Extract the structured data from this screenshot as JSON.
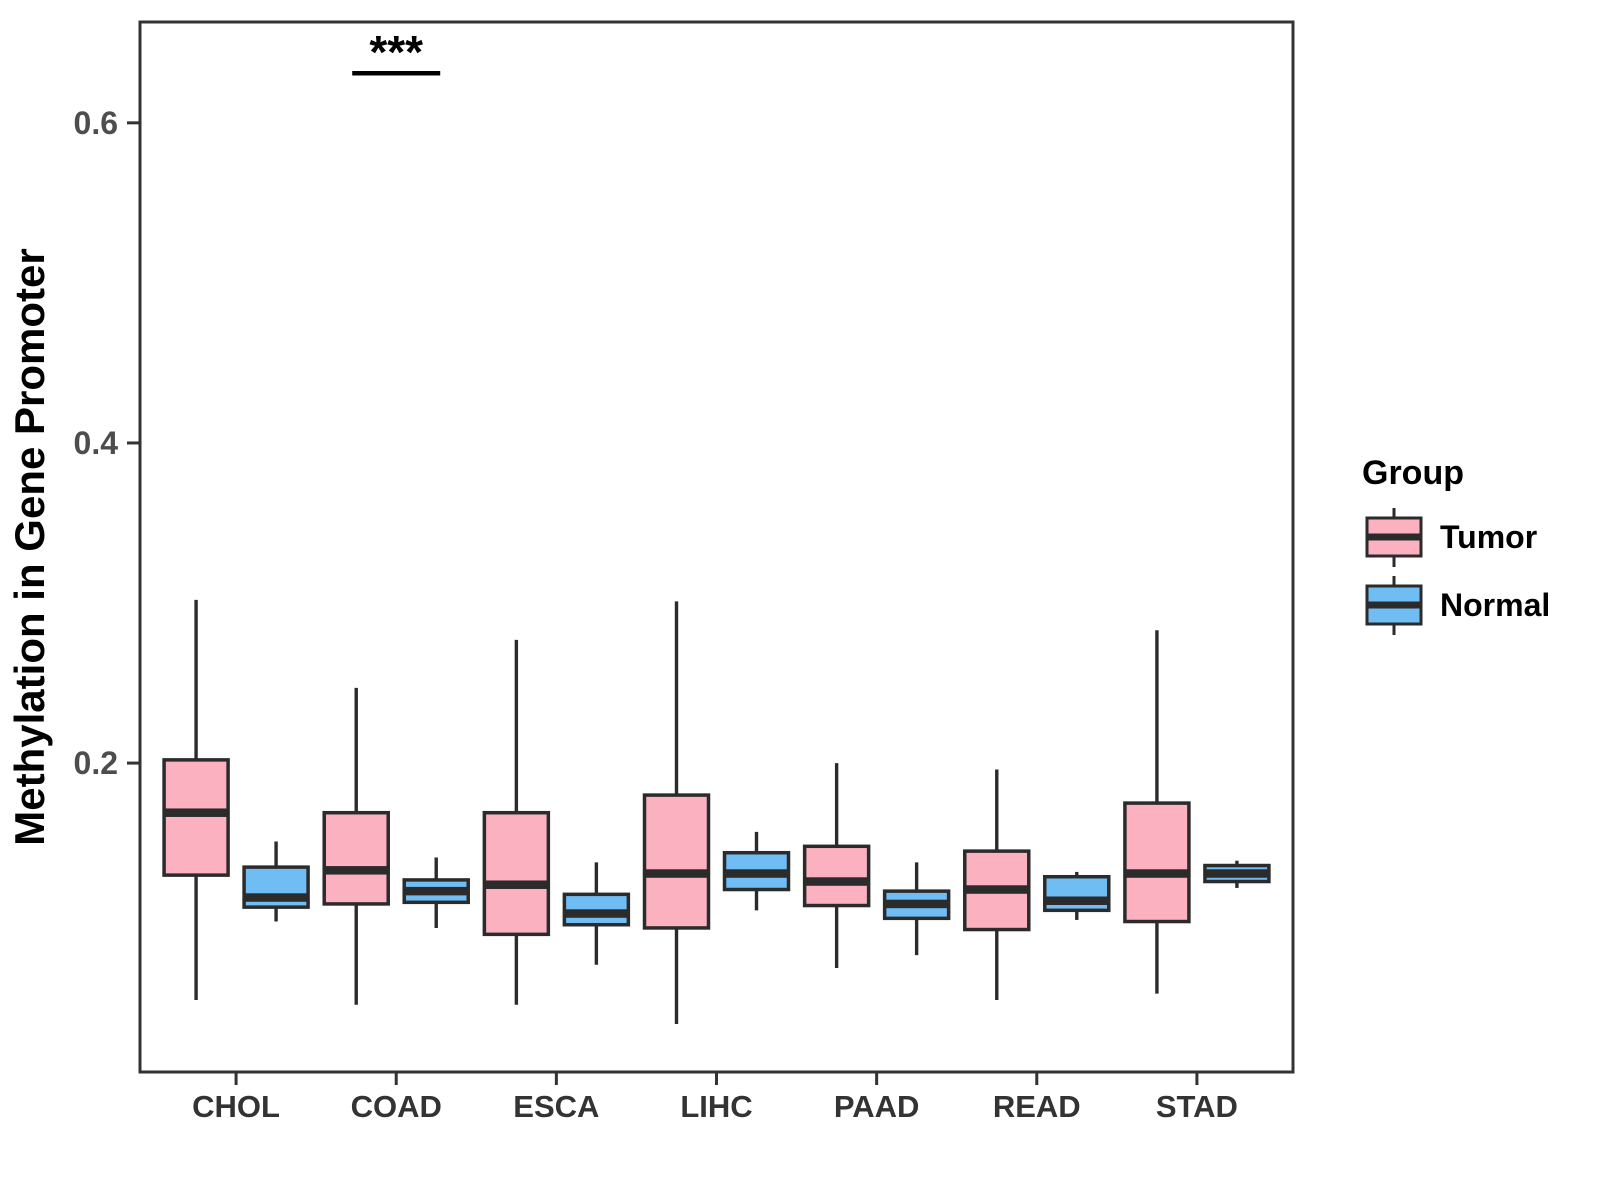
{
  "figure": {
    "background": "#ffffff"
  },
  "chart_data": {
    "type": "boxplot",
    "title": "",
    "ylabel": "Methylation in Gene Promoter",
    "xlabel": "",
    "categories": [
      "CHOL",
      "COAD",
      "ESCA",
      "LIHC",
      "PAAD",
      "READ",
      "STAD"
    ],
    "legend_title": "Group",
    "groups": [
      "Tumor",
      "Normal"
    ],
    "legend_position": "right",
    "grid": "off",
    "ylim": [
      0.007,
      0.663
    ],
    "yticks": [
      0.2,
      0.4,
      0.6
    ],
    "ytick_labels": [
      "0.2",
      "0.4",
      "0.6"
    ],
    "colors": {
      "tumor": "#FBB1C0",
      "normal": "#70BDF4",
      "box_stroke": "#2B2B2B",
      "axis": "#333333",
      "ytick_text": "#4D4D4D",
      "xtick_text": "#333333",
      "significance": "#000000"
    },
    "significance": {
      "category": "COAD",
      "label": "***",
      "y_value": 0.631
    },
    "series": [
      {
        "name": "Tumor",
        "color": "#FBB1C0",
        "boxes": [
          {
            "category": "CHOL",
            "whisker_low": 0.052,
            "q1": 0.13,
            "median": 0.169,
            "q3": 0.202,
            "whisker_high": 0.302
          },
          {
            "category": "COAD",
            "whisker_low": 0.049,
            "q1": 0.112,
            "median": 0.133,
            "q3": 0.169,
            "whisker_high": 0.247
          },
          {
            "category": "ESCA",
            "whisker_low": 0.049,
            "q1": 0.093,
            "median": 0.124,
            "q3": 0.169,
            "whisker_high": 0.277
          },
          {
            "category": "LIHC",
            "whisker_low": 0.037,
            "q1": 0.097,
            "median": 0.131,
            "q3": 0.18,
            "whisker_high": 0.301
          },
          {
            "category": "PAAD",
            "whisker_low": 0.072,
            "q1": 0.111,
            "median": 0.126,
            "q3": 0.148,
            "whisker_high": 0.2
          },
          {
            "category": "READ",
            "whisker_low": 0.052,
            "q1": 0.096,
            "median": 0.121,
            "q3": 0.145,
            "whisker_high": 0.196
          },
          {
            "category": "STAD",
            "whisker_low": 0.056,
            "q1": 0.101,
            "median": 0.131,
            "q3": 0.175,
            "whisker_high": 0.283
          }
        ]
      },
      {
        "name": "Normal",
        "color": "#70BDF4",
        "boxes": [
          {
            "category": "CHOL",
            "whisker_low": 0.101,
            "q1": 0.11,
            "median": 0.116,
            "q3": 0.135,
            "whisker_high": 0.151
          },
          {
            "category": "COAD",
            "whisker_low": 0.097,
            "q1": 0.113,
            "median": 0.12,
            "q3": 0.127,
            "whisker_high": 0.141
          },
          {
            "category": "ESCA",
            "whisker_low": 0.074,
            "q1": 0.099,
            "median": 0.106,
            "q3": 0.118,
            "whisker_high": 0.138
          },
          {
            "category": "LIHC",
            "whisker_low": 0.108,
            "q1": 0.121,
            "median": 0.131,
            "q3": 0.144,
            "whisker_high": 0.157
          },
          {
            "category": "PAAD",
            "whisker_low": 0.08,
            "q1": 0.103,
            "median": 0.112,
            "q3": 0.12,
            "whisker_high": 0.138
          },
          {
            "category": "READ",
            "whisker_low": 0.102,
            "q1": 0.108,
            "median": 0.114,
            "q3": 0.129,
            "whisker_high": 0.132
          },
          {
            "category": "STAD",
            "whisker_low": 0.122,
            "q1": 0.126,
            "median": 0.131,
            "q3": 0.136,
            "whisker_high": 0.139
          }
        ]
      }
    ]
  }
}
